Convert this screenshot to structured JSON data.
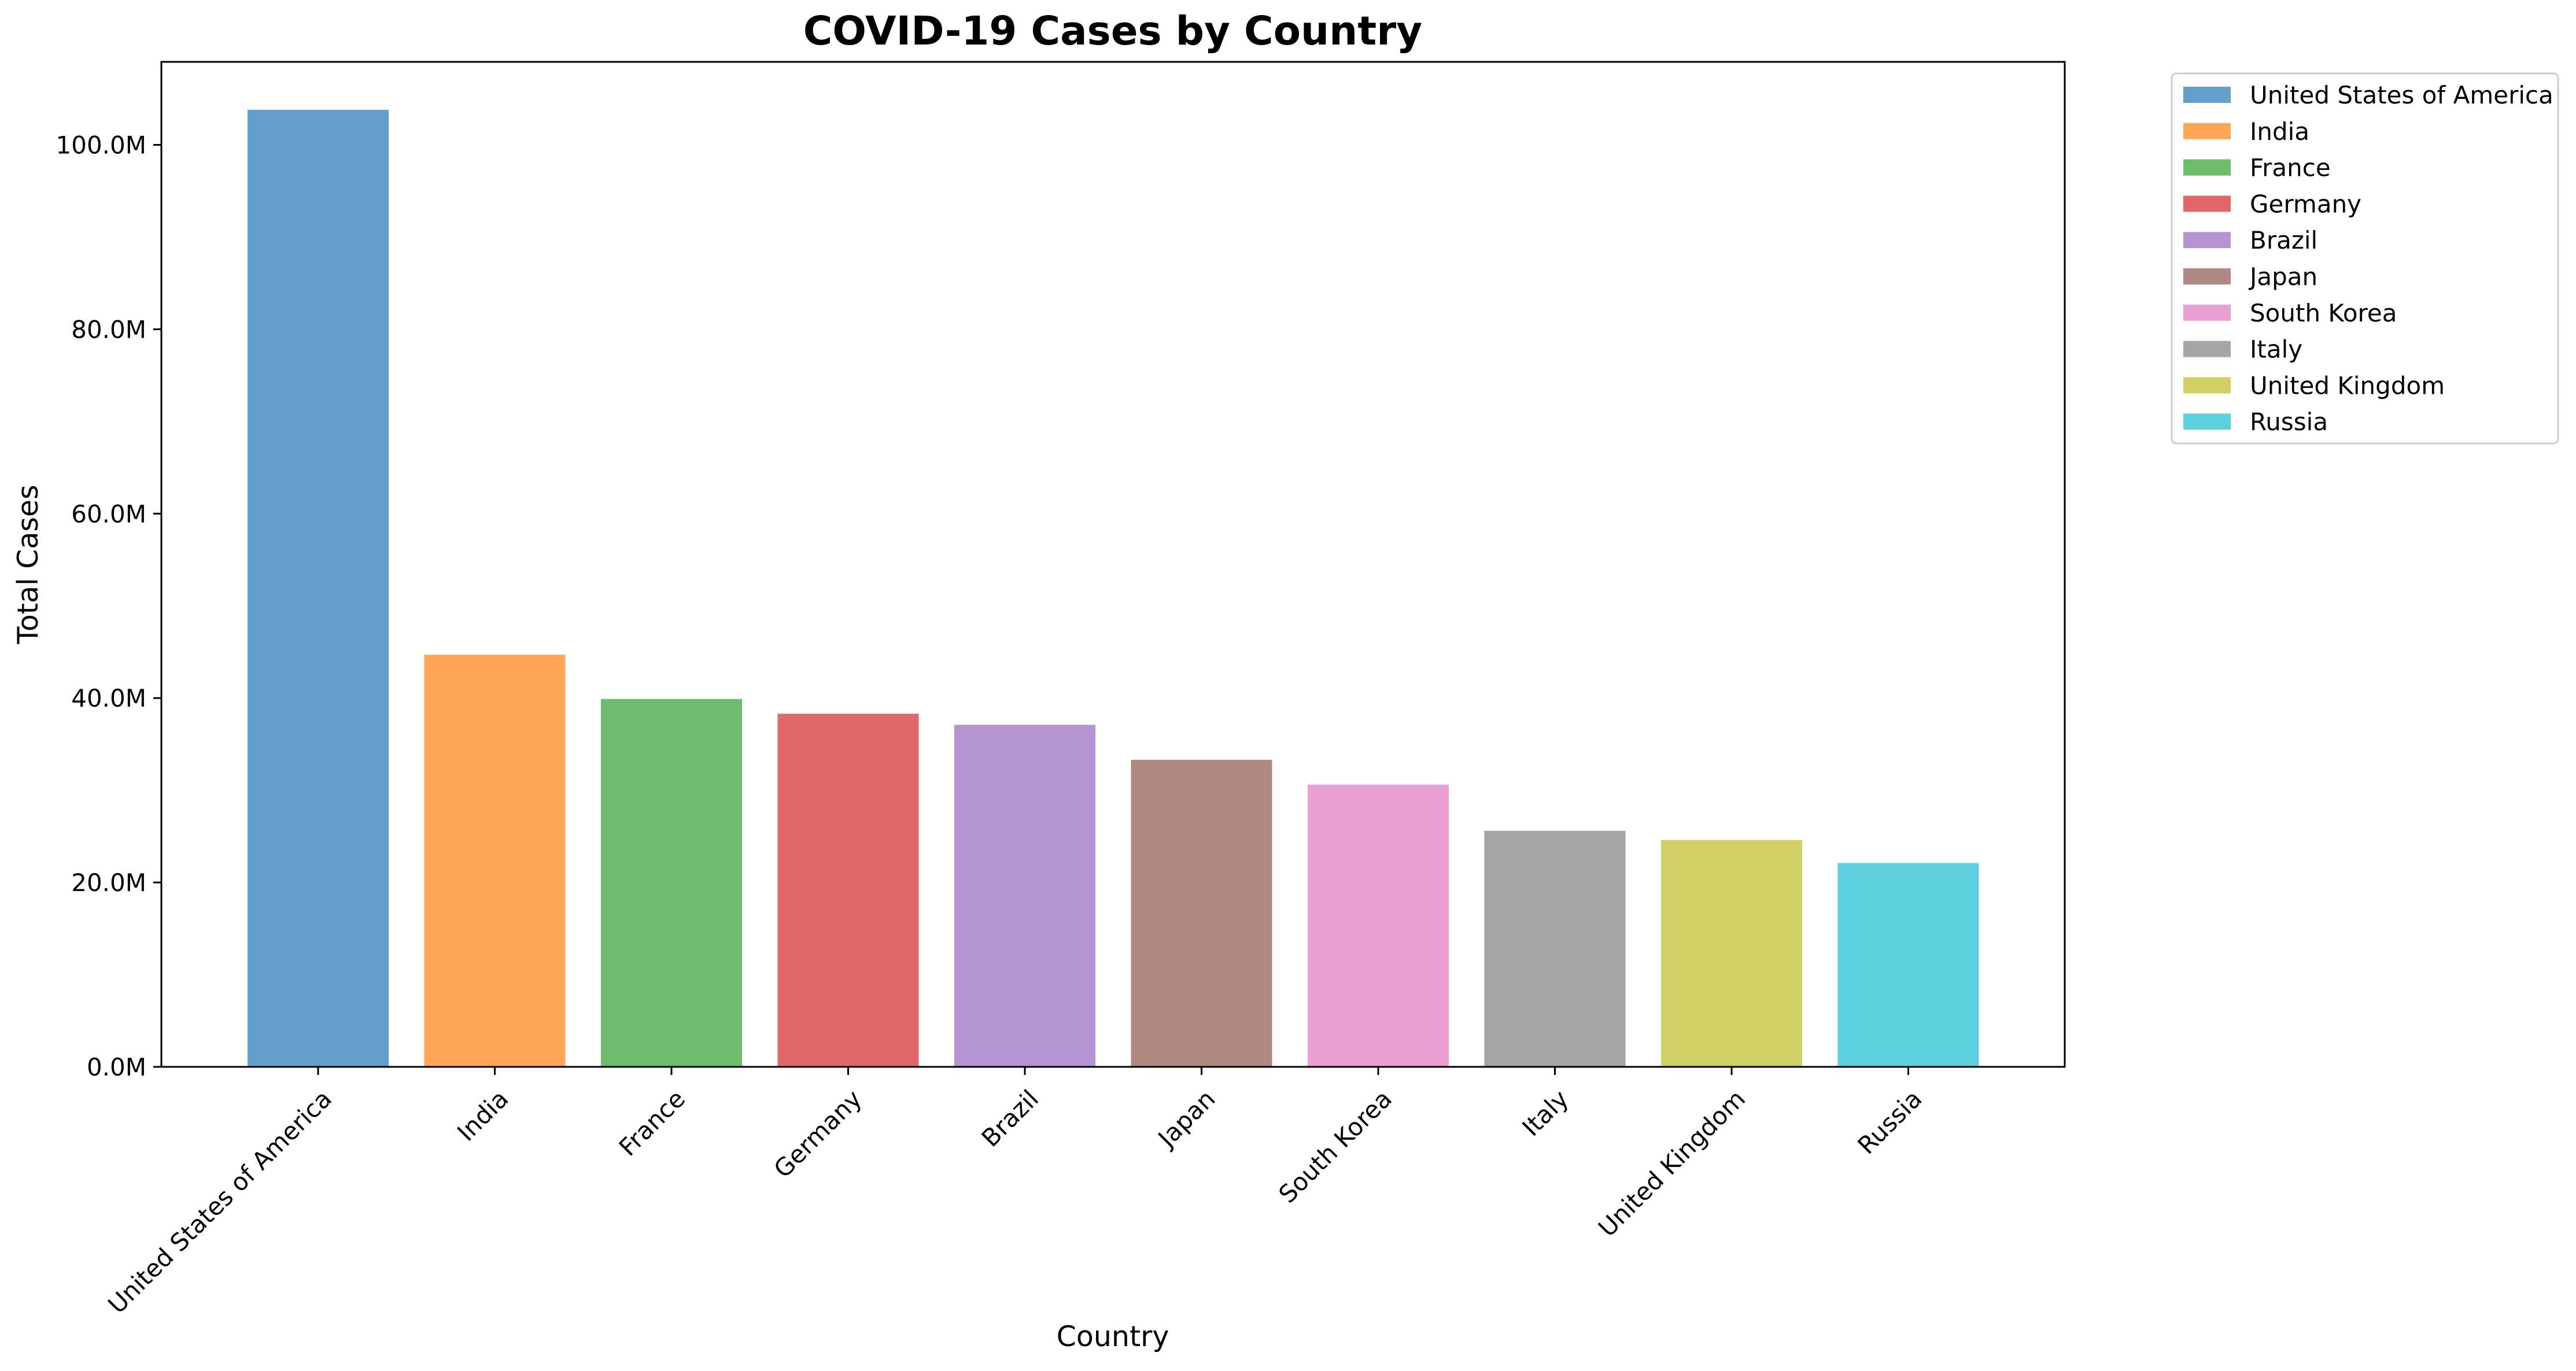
{
  "chart_data": {
    "type": "bar",
    "title": "COVID-19 Cases by Country",
    "xlabel": "Country",
    "ylabel": "Total Cases",
    "categories": [
      "United States of America",
      "India",
      "France",
      "Germany",
      "Brazil",
      "Japan",
      "South Korea",
      "Italy",
      "United Kingdom",
      "Russia"
    ],
    "values": [
      103800000,
      44700000,
      39900000,
      38300000,
      37100000,
      33300000,
      30600000,
      25600000,
      24600000,
      22100000
    ],
    "colors": [
      "#1f77b4",
      "#ff7f0e",
      "#2ca02c",
      "#d62728",
      "#9467bd",
      "#8c564b",
      "#e377c2",
      "#7f7f7f",
      "#bcbd22",
      "#17becf"
    ],
    "bar_opacity": 0.7,
    "ylim": [
      0,
      109000000
    ],
    "yticks": [
      0,
      20000000,
      40000000,
      60000000,
      80000000,
      100000000
    ],
    "ytick_labels": [
      "0.0M",
      "20.0M",
      "40.0M",
      "60.0M",
      "80.0M",
      "100.0M"
    ],
    "grid": false,
    "legend": {
      "placement": "outside-top-right",
      "entries": [
        "United States of America",
        "India",
        "France",
        "Germany",
        "Brazil",
        "Japan",
        "South Korea",
        "Italy",
        "United Kingdom",
        "Russia"
      ]
    }
  }
}
